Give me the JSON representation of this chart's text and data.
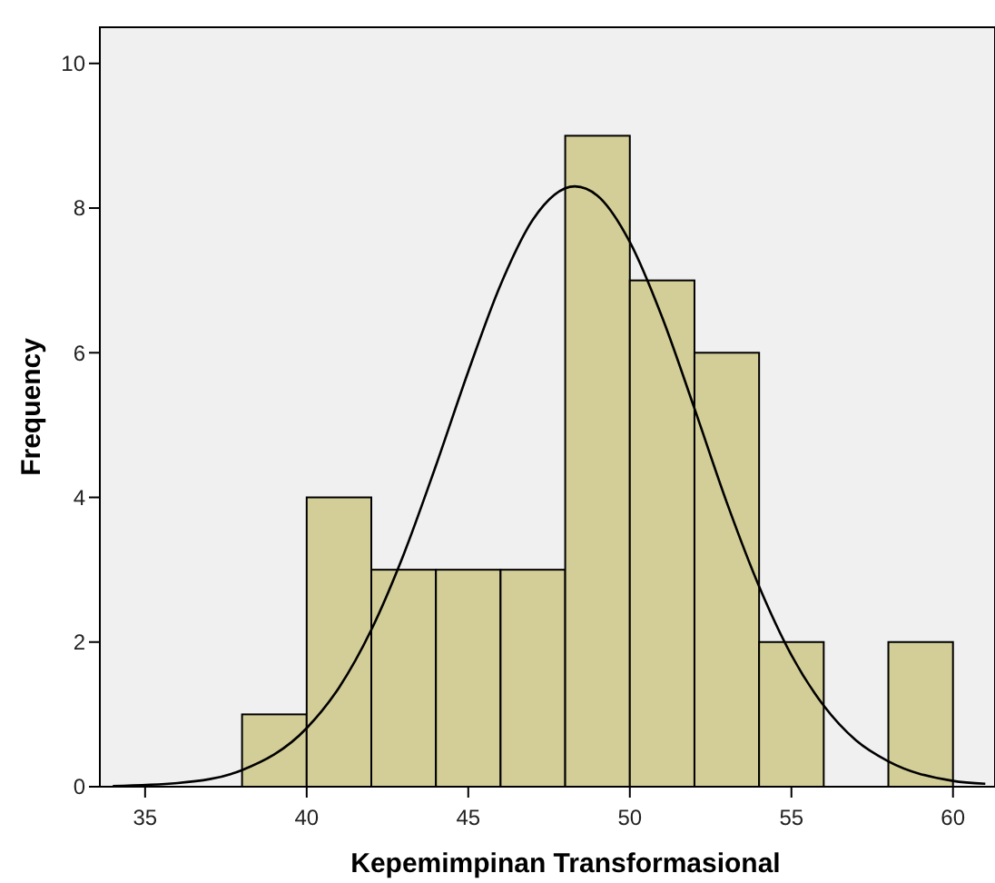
{
  "chart_data": {
    "type": "histogram",
    "xlabel": "Kepemimpinan Transformasional",
    "ylabel": "Frequency",
    "bins": [
      38,
      40,
      42,
      44,
      46,
      48,
      50,
      52,
      54,
      56,
      58,
      60
    ],
    "values": [
      1,
      4,
      3,
      3,
      3,
      9,
      7,
      6,
      2,
      0,
      2
    ],
    "color": "#d3ce97",
    "series": [
      {
        "type": "line",
        "color": "#000000",
        "x": [
          34,
          36,
          38,
          40,
          41,
          42,
          43,
          44,
          45,
          46,
          47,
          48.3,
          49,
          50,
          51,
          52,
          53,
          54,
          55,
          56,
          57,
          58,
          60,
          61
        ],
        "values": [
          0.01,
          0.05,
          0.23,
          0.81,
          1.37,
          2.17,
          3.21,
          4.44,
          5.74,
          6.94,
          7.84,
          8.3,
          8.17,
          7.53,
          6.49,
          5.23,
          3.93,
          2.77,
          1.82,
          1.12,
          0.64,
          0.35,
          0.08,
          0.04
        ]
      }
    ],
    "xlim": [
      33.6,
      61.3
    ],
    "ylim": [
      0,
      10.5
    ],
    "xticks": [
      35,
      40,
      45,
      50,
      55,
      60
    ],
    "yticks": [
      0,
      2,
      4,
      6,
      8,
      10
    ],
    "grid": false
  }
}
